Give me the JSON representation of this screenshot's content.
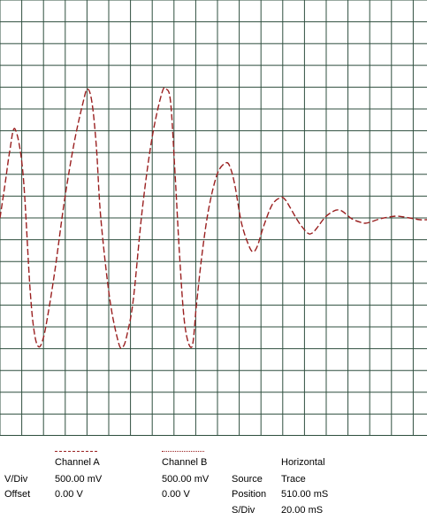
{
  "chart_data": {
    "type": "line",
    "title": "",
    "xlabel": "",
    "ylabel": "",
    "grid": true,
    "legend": "bottom",
    "colors": {
      "grid": "#2f4f3f",
      "trace": "#9a2020",
      "background": "#ffffff"
    },
    "series": [
      {
        "name": "Channel A",
        "x": [
          0,
          6,
          11,
          17,
          26,
          34,
          39,
          44,
          49,
          54,
          62,
          73,
          84,
          94,
          99,
          104,
          109,
          114,
          124,
          134,
          139,
          144,
          151,
          161,
          172,
          183,
          188,
          193,
          198,
          203,
          209,
          217,
          222,
          228,
          236,
          246,
          256,
          261,
          266,
          273,
          281,
          286,
          291,
          298,
          308,
          318,
          323,
          328,
          338,
          348,
          353,
          358,
          368,
          378,
          383,
          388,
          398,
          408,
          413,
          418,
          430,
          440,
          450,
          463,
          475,
          483
        ],
        "y": [
          0.0,
          0.4,
          0.75,
          1.0,
          0.5,
          -0.8,
          -1.3,
          -1.45,
          -1.35,
          -1.1,
          -0.6,
          0.2,
          0.85,
          1.3,
          1.45,
          1.3,
          0.8,
          0.0,
          -0.9,
          -1.4,
          -1.45,
          -1.3,
          -0.9,
          0.1,
          0.9,
          1.4,
          1.45,
          1.3,
          0.5,
          -0.4,
          -1.2,
          -1.45,
          -1.0,
          -0.45,
          0.1,
          0.5,
          0.62,
          0.55,
          0.35,
          -0.05,
          -0.3,
          -0.38,
          -0.32,
          -0.1,
          0.15,
          0.23,
          0.2,
          0.12,
          -0.05,
          -0.17,
          -0.17,
          -0.12,
          0.01,
          0.08,
          0.09,
          0.07,
          -0.01,
          -0.05,
          -0.06,
          -0.05,
          -0.01,
          0.01,
          0.02,
          0.0,
          -0.02,
          -0.02
        ]
      },
      {
        "name": "Channel B",
        "x": [],
        "y": []
      }
    ],
    "xlim": [
      0,
      483
    ],
    "ylim": [
      -2.45,
      2.45
    ]
  },
  "legend": {
    "channel_a": "Channel A",
    "channel_b": "Channel B",
    "horizontal": "Horizontal"
  },
  "settings": {
    "vdiv_label": "V/Div",
    "offset_label": "Offset",
    "channel_a_vdiv": "500.00 mV",
    "channel_a_offset": "0.00 V",
    "channel_b_vdiv": "500.00 mV",
    "channel_b_offset": "0.00 V",
    "source_label": "Source",
    "source_value": "Trace",
    "position_label": "Position",
    "position_value": "510.00 mS",
    "sdiv_label": "S/Div",
    "sdiv_value": "20.00 mS"
  }
}
